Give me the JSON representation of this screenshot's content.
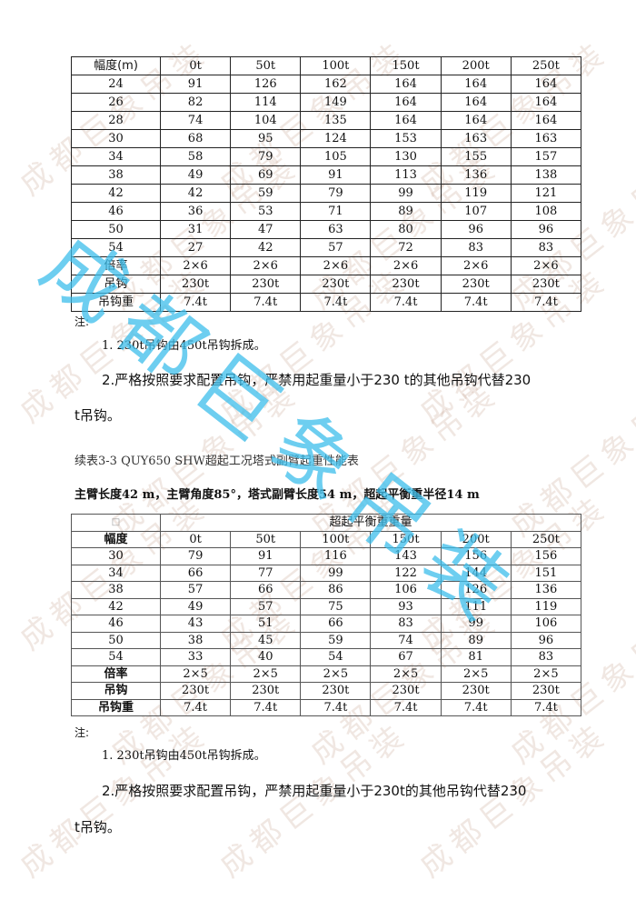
{
  "watermark": {
    "text": "成都巨象吊装"
  },
  "table1": {
    "header": [
      "幅度(m)",
      "0t",
      "50t",
      "100t",
      "150t",
      "200t",
      "250t"
    ],
    "rows": [
      [
        "24",
        "91",
        "126",
        "162",
        "164",
        "164",
        "164"
      ],
      [
        "26",
        "82",
        "114",
        "149",
        "164",
        "164",
        "164"
      ],
      [
        "28",
        "74",
        "104",
        "135",
        "164",
        "164",
        "164"
      ],
      [
        "30",
        "68",
        "95",
        "124",
        "153",
        "163",
        "163"
      ],
      [
        "34",
        "58",
        "79",
        "105",
        "130",
        "155",
        "157"
      ],
      [
        "38",
        "49",
        "69",
        "91",
        "113",
        "136",
        "138"
      ],
      [
        "42",
        "42",
        "59",
        "79",
        "99",
        "119",
        "121"
      ],
      [
        "46",
        "36",
        "53",
        "71",
        "89",
        "107",
        "108"
      ],
      [
        "50",
        "31",
        "47",
        "63",
        "80",
        "96",
        "96"
      ],
      [
        "54",
        "27",
        "42",
        "57",
        "72",
        "83",
        "83"
      ],
      [
        "倍率",
        "2×6",
        "2×6",
        "2×6",
        "2×6",
        "2×6",
        "2×6"
      ],
      [
        "吊钩",
        "230t",
        "230t",
        "230t",
        "230t",
        "230t",
        "230t"
      ],
      [
        "吊钩重",
        "7.4t",
        "7.4t",
        "7.4t",
        "7.4t",
        "7.4t",
        "7.4t"
      ]
    ]
  },
  "notes1": {
    "label": "注:",
    "line1": "1. 230t吊钩由450t吊钩拆成。",
    "line2": "2.严格按照要求配置吊钩，严禁用起重量小于230 t的其他吊钩代替230",
    "line3": "t吊钩。"
  },
  "caption": "续表3-3 QUY650 SHW超起工况塔式副臂起重性能表",
  "subtitle": "主臂长度42 m，主臂角度85°，塔式副臂长度54 m，超起平衡重半径14 m",
  "table2": {
    "corner": "□",
    "group_header": "超起平衡重重量",
    "header": [
      "幅度",
      "0t",
      "50t",
      "100t",
      "150t",
      "200t",
      "250t"
    ],
    "rows": [
      [
        "30",
        "79",
        "91",
        "116",
        "143",
        "156",
        "156"
      ],
      [
        "34",
        "66",
        "77",
        "99",
        "122",
        "144",
        "151"
      ],
      [
        "38",
        "57",
        "66",
        "86",
        "106",
        "126",
        "136"
      ],
      [
        "42",
        "49",
        "57",
        "75",
        "93",
        "111",
        "119"
      ],
      [
        "46",
        "43",
        "51",
        "66",
        "83",
        "99",
        "106"
      ],
      [
        "50",
        "38",
        "45",
        "59",
        "74",
        "89",
        "96"
      ],
      [
        "54",
        "33",
        "40",
        "54",
        "67",
        "81",
        "83"
      ],
      [
        "倍率",
        "2×5",
        "2×5",
        "2×5",
        "2×5",
        "2×5",
        "2×5"
      ],
      [
        "吊钩",
        "230t",
        "230t",
        "230t",
        "230t",
        "230t",
        "230t"
      ],
      [
        "吊钩重",
        "7.4t",
        "7.4t",
        "7.4t",
        "7.4t",
        "7.4t",
        "7.4t"
      ]
    ]
  },
  "notes2": {
    "label": "注:",
    "line1": "1. 230t吊钩由450t吊钩拆成。",
    "line2": "2.严格按照要求配置吊钩，严禁用起重量小于230t的其他吊钩代替230",
    "line3": "t吊钩。"
  }
}
